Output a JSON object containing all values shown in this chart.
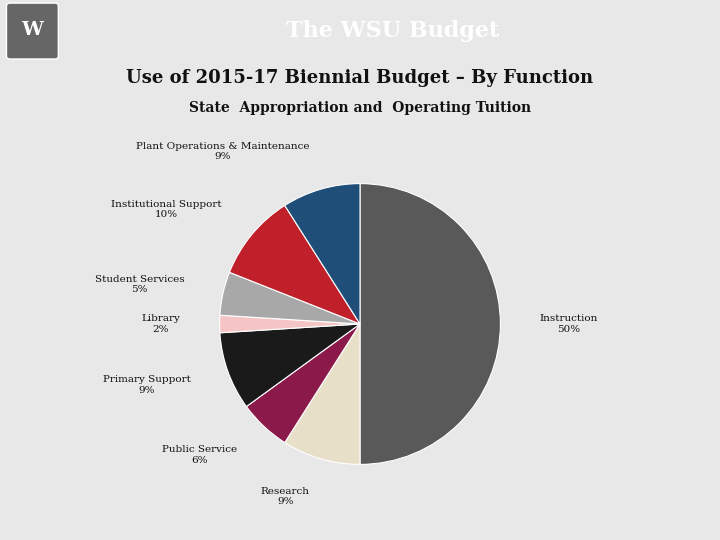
{
  "title_bar": "The WSU Budget",
  "title_bar_bg": "#8B1A2D",
  "title_bar_color": "#FFFFFF",
  "subtitle": "Use of 2015-17 Biennial Budget – By Function",
  "sub_subtitle": "State  Appropriation and  Operating Tuition",
  "bg_color": "#E8E8E8",
  "header_bg": "#8B1A2D",
  "logo_bg": "#888888",
  "slices": [
    {
      "label": "Instruction",
      "pct": 50,
      "color": "#595959"
    },
    {
      "label": "Research",
      "pct": 9,
      "color": "#E8DFC8"
    },
    {
      "label": "Public Service",
      "pct": 6,
      "color": "#8B1A4A"
    },
    {
      "label": "Primary Support",
      "pct": 9,
      "color": "#1A1A1A"
    },
    {
      "label": "Library",
      "pct": 2,
      "color": "#F5C5C5"
    },
    {
      "label": "Student Services",
      "pct": 5,
      "color": "#A8A8A8"
    },
    {
      "label": "Institutional Support",
      "pct": 10,
      "color": "#C0202A"
    },
    {
      "label": "Plant Operations & Maintenance",
      "pct": 9,
      "color": "#1F4E79"
    }
  ],
  "label_fontsize": 7.5,
  "figsize": [
    7.2,
    5.4
  ],
  "dpi": 100
}
